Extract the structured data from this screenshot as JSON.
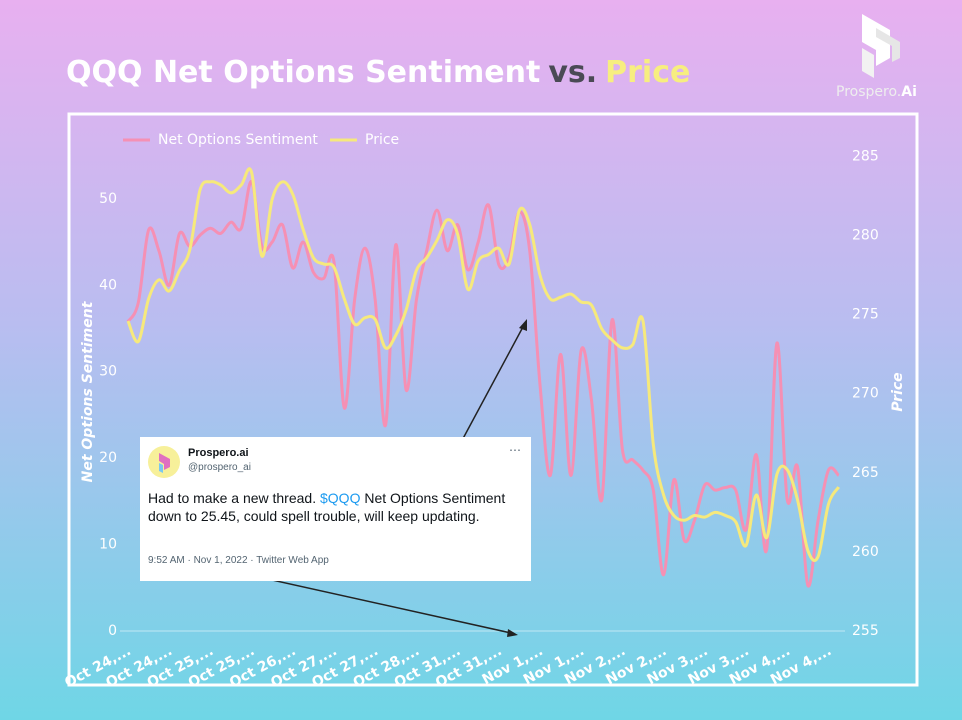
{
  "chart_data": {
    "type": "line",
    "title": [
      "QQQ Net Options Sentiment",
      "vs.",
      "Price"
    ],
    "ylabel": "Net Options Sentiment",
    "y2label": "Price",
    "categories": [
      "Oct 24,...",
      null,
      null,
      null,
      "Oct 24,...",
      null,
      null,
      null,
      "Oct 25,...",
      null,
      null,
      null,
      "Oct 25,...",
      null,
      null,
      null,
      "Oct 26,...",
      null,
      null,
      null,
      "Oct 27,...",
      null,
      null,
      null,
      "Oct 27,...",
      null,
      null,
      null,
      "Oct 28,...",
      null,
      null,
      null,
      "Oct 31,...",
      null,
      null,
      null,
      "Oct 31,...",
      null,
      null,
      null,
      "Nov 1,...",
      null,
      null,
      null,
      "Nov 1,...",
      null,
      null,
      null,
      "Nov 2,...",
      null,
      null,
      null,
      "Nov 2,...",
      null,
      null,
      null,
      "Nov 3,...",
      null,
      null,
      null,
      "Nov 3,...",
      null,
      null,
      null,
      "Nov 4,...",
      null,
      null,
      null,
      "Nov 4,...",
      null
    ],
    "series": [
      {
        "name": "Net Options Sentiment",
        "color": "#f590b4",
        "values": [
          35.8,
          38,
          46.4,
          44,
          40,
          46,
          44.5,
          45.8,
          46.6,
          46,
          47.3,
          46.6,
          52,
          44.5,
          45,
          47,
          42,
          45,
          41.5,
          40.8,
          42.7,
          25.8,
          38.3,
          44.3,
          38.3,
          23.8,
          44.7,
          27.9,
          38.3,
          44,
          48.7,
          44,
          47,
          41.8,
          45,
          49.3,
          42.4,
          43.2,
          48.5,
          44,
          28.5,
          18,
          32,
          18,
          32.5,
          26.7,
          15.2,
          36,
          21,
          19.8,
          18.6,
          16.3,
          6.5,
          17.5,
          10.5,
          12.8,
          16.9,
          16.3,
          16.6,
          16.3,
          11.7,
          20.4,
          9.4,
          33.3,
          15.2,
          19,
          5.3,
          12.8,
          18.6,
          18
        ]
      },
      {
        "name": "Price",
        "color": "#f6e97c",
        "axis": "y2",
        "values": [
          274.6,
          273.3,
          276,
          277.2,
          276.5,
          277.8,
          279.1,
          282.9,
          283.4,
          283.2,
          282.7,
          283.2,
          284,
          278.7,
          282.3,
          283.4,
          282.6,
          280.4,
          278.6,
          278.2,
          278,
          276,
          274.4,
          274.8,
          274.7,
          272.9,
          273.7,
          275.3,
          277.8,
          278.6,
          279.7,
          281,
          280.1,
          276.6,
          278.4,
          278.8,
          279.2,
          278.2,
          281.6,
          280.7,
          277.5,
          276,
          276.1,
          276.3,
          275.8,
          275.6,
          274.1,
          273.4,
          272.9,
          273.1,
          274.6,
          266.8,
          263.6,
          262.3,
          262,
          262.3,
          262.2,
          262.5,
          262.3,
          261.9,
          260.4,
          263.6,
          260.9,
          264.9,
          265.2,
          263.3,
          260.1,
          259.7,
          263,
          264.1
        ]
      }
    ],
    "ylim": [
      0,
      56
    ],
    "yticks": [
      0,
      10,
      20,
      30,
      40,
      50
    ],
    "y2lim": [
      255,
      285.6
    ],
    "y2ticks": [
      255,
      260,
      265,
      270,
      275,
      280,
      285
    ],
    "grid": false,
    "legend": "top-left"
  },
  "logo": [
    "Prospero.",
    "Ai"
  ],
  "tweet": {
    "name": "Prospero.ai",
    "handle": "@prospero_ai",
    "text": [
      "Had to make a new thread. ",
      "$QQQ",
      " Net Options Sentiment down to 25.45, could spell trouble, will keep updating."
    ],
    "meta": "9:52 AM · Nov 1, 2022 · Twitter Web App"
  }
}
